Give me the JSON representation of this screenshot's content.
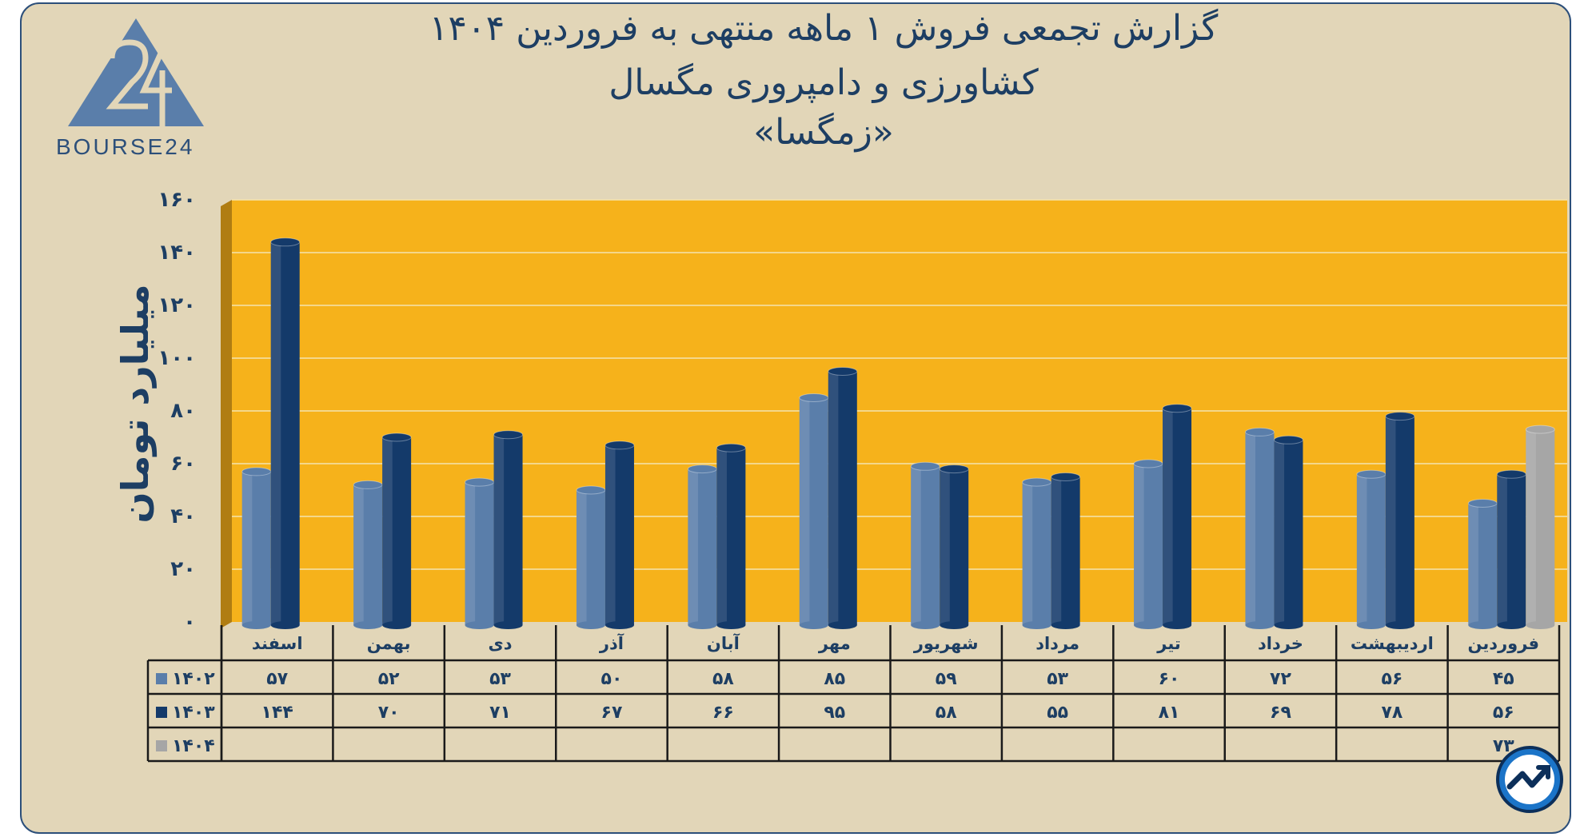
{
  "header": {
    "title_line1": "گزارش تجمعی فروش ۱ ماهه منتهی به فروردین ۱۴۰۴",
    "title_line2": "کشاورزی و دامپروری مگسال",
    "title_line3": "«زمگسا»"
  },
  "logo": {
    "text": "BOURSE24",
    "icon": "bourse24-triangle-logo"
  },
  "watermark_icon": "chart-trend-logo-icon",
  "colors": {
    "background": "#e2d6b8",
    "plot_background": "#f6b21b",
    "series_1402": "#5a7eaa",
    "series_1403": "#143a6a",
    "series_1404": "#a6a6a6",
    "text": "#1d3e63"
  },
  "chart_data": {
    "type": "bar",
    "ylabel": "میلیارد تومان",
    "ylim": [
      0,
      160
    ],
    "y_ticks": [
      "۰",
      "۲۰",
      "۴۰",
      "۶۰",
      "۸۰",
      "۱۰۰",
      "۱۲۰",
      "۱۴۰",
      "۱۶۰"
    ],
    "categories": [
      "فروردین",
      "اردیبهشت",
      "خرداد",
      "تیر",
      "مرداد",
      "شهریور",
      "مهر",
      "آبان",
      "آذر",
      "دی",
      "بهمن",
      "اسفند"
    ],
    "grid": true,
    "series": [
      {
        "name": "۱۴۰۲",
        "values": [
          45,
          56,
          72,
          60,
          53,
          59,
          85,
          58,
          50,
          53,
          52,
          57
        ],
        "labels": [
          "۴۵",
          "۵۶",
          "۷۲",
          "۶۰",
          "۵۳",
          "۵۹",
          "۸۵",
          "۵۸",
          "۵۰",
          "۵۳",
          "۵۲",
          "۵۷"
        ]
      },
      {
        "name": "۱۴۰۳",
        "values": [
          56,
          78,
          69,
          81,
          55,
          58,
          95,
          66,
          67,
          71,
          70,
          144
        ],
        "labels": [
          "۵۶",
          "۷۸",
          "۶۹",
          "۸۱",
          "۵۵",
          "۵۸",
          "۹۵",
          "۶۶",
          "۶۷",
          "۷۱",
          "۷۰",
          "۱۴۴"
        ]
      },
      {
        "name": "۱۴۰۴",
        "values": [
          73,
          null,
          null,
          null,
          null,
          null,
          null,
          null,
          null,
          null,
          null,
          null
        ],
        "labels": [
          "۷۳",
          "",
          "",
          "",
          "",
          "",
          "",
          "",
          "",
          "",
          "",
          ""
        ]
      }
    ],
    "data_table": true
  }
}
